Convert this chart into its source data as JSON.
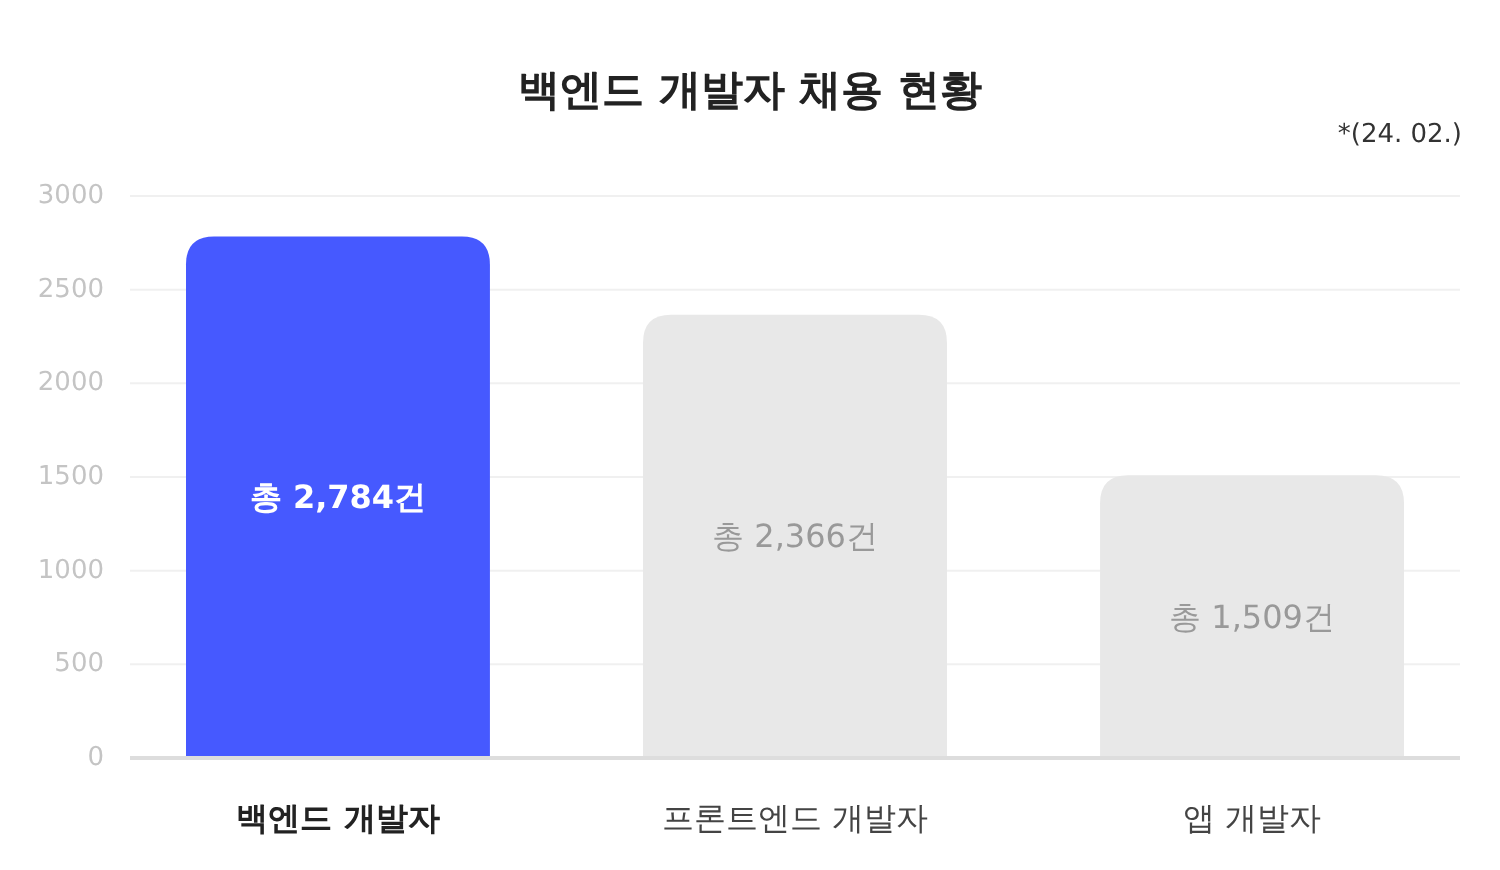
{
  "chart_data": {
    "type": "bar",
    "title": "백엔드 개발자 채용 현황",
    "annotations": [
      "*(24. 02.)"
    ],
    "categories": [
      "백엔드 개발자",
      "프론트엔드 개발자",
      "앱 개발자"
    ],
    "values": [
      2784,
      2366,
      1509
    ],
    "colors": [
      "#4659ff",
      "#e8e8e8",
      "#e8e8e8"
    ],
    "value_labels": [
      "총 2,784건",
      "총 2,366건",
      "총 1,509건"
    ],
    "ylim": [
      0,
      3000
    ],
    "yticks": [
      0,
      500,
      1000,
      1500,
      2000,
      2500,
      3000
    ],
    "grid": "y"
  }
}
